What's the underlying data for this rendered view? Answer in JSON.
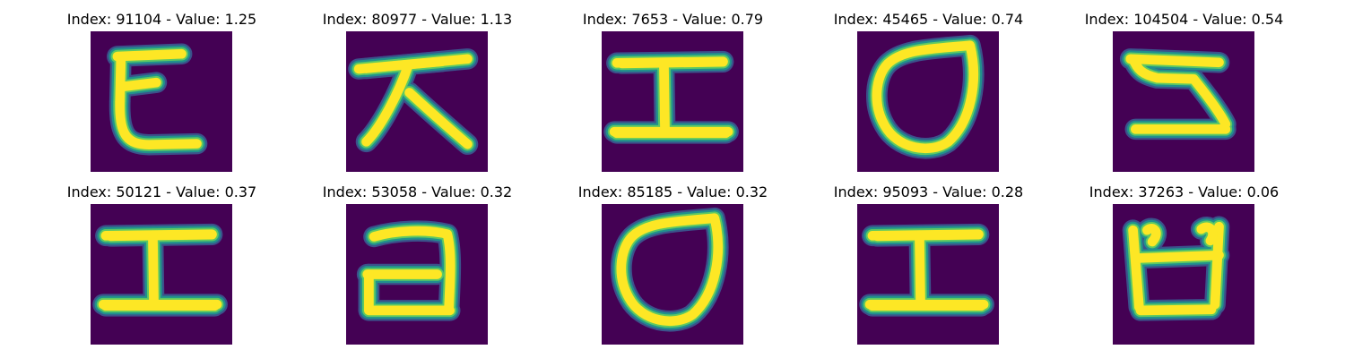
{
  "colors": {
    "background": "#440154",
    "low": "#3b528b",
    "mid": "#21918c",
    "high": "#5ec962",
    "peak": "#fde725"
  },
  "chart_data": {
    "type": "image_grid",
    "colormap": "viridis",
    "rows": 2,
    "cols": 5,
    "panels": [
      {
        "title": "Index: 91104 - Value: 1.25",
        "index": 91104,
        "value": 1.25,
        "glyph": "ㄷ"
      },
      {
        "title": "Index: 80977 - Value: 1.13",
        "index": 80977,
        "value": 1.13,
        "glyph": "ㅈ"
      },
      {
        "title": "Index: 7653 - Value: 0.79",
        "index": 7653,
        "value": 0.79,
        "glyph": "ㅍ"
      },
      {
        "title": "Index: 45465 - Value: 0.74",
        "index": 45465,
        "value": 0.74,
        "glyph": "ㅇ"
      },
      {
        "title": "Index: 104504 - Value: 0.54",
        "index": 104504,
        "value": 0.54,
        "glyph": "ㄹ"
      },
      {
        "title": "Index: 50121 - Value: 0.37",
        "index": 50121,
        "value": 0.37,
        "glyph": "ㅍ"
      },
      {
        "title": "Index: 53058 - Value: 0.32",
        "index": 53058,
        "value": 0.32,
        "glyph": "ㄱ"
      },
      {
        "title": "Index: 85185 - Value: 0.32",
        "index": 85185,
        "value": 0.32,
        "glyph": "ㅇ"
      },
      {
        "title": "Index: 95093 - Value: 0.28",
        "index": 95093,
        "value": 0.28,
        "glyph": "ㅍ"
      },
      {
        "title": "Index: 37263 - Value: 0.06",
        "index": 37263,
        "value": 0.06,
        "glyph": "ㅂ"
      }
    ]
  }
}
